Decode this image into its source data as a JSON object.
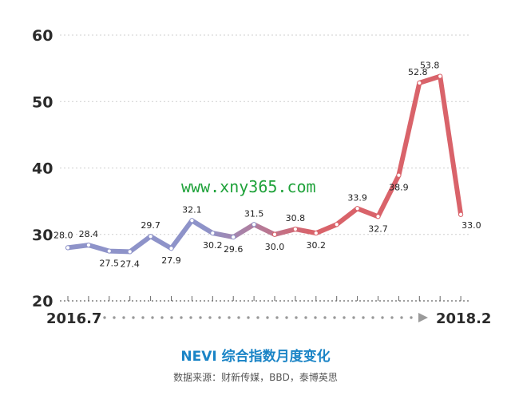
{
  "chart_data": {
    "type": "line",
    "title": "NEVI 综合指数月度变化",
    "subtitle": "数据来源：财新传媒，BBD，泰博英思",
    "x_start_label": "2016.7",
    "x_end_label": "2018.2",
    "yticks": [
      "20",
      "30",
      "40",
      "50",
      "60"
    ],
    "ylim": [
      20,
      60
    ],
    "values": [
      28.0,
      28.4,
      27.5,
      27.4,
      29.7,
      27.9,
      32.1,
      30.2,
      29.6,
      31.5,
      30.0,
      30.8,
      30.2,
      31.5,
      33.9,
      32.7,
      38.9,
      52.8,
      53.8,
      33.0
    ],
    "labels": [
      "28.0",
      "28.4",
      "27.5",
      "27.4",
      "29.7",
      "27.9",
      "32.1",
      "30.2",
      "29.6",
      "31.5",
      "30.0",
      "30.8",
      "30.2",
      "",
      "33.9",
      "32.7",
      "38.9",
      "52.8",
      "53.8",
      "33.0"
    ],
    "grid": true,
    "line_color_start": "#8e93c9",
    "line_color_end": "#d9636a"
  },
  "watermark": "www.xny365.com"
}
